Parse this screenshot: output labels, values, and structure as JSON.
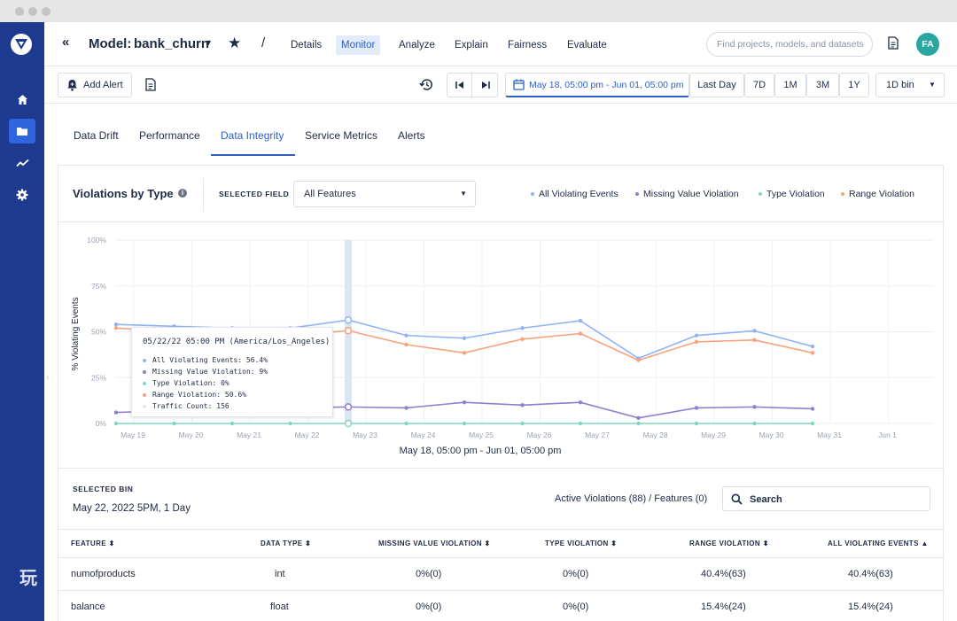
{
  "header": {
    "model_prefix": "Model:",
    "model_name": "bank_churn",
    "nav": [
      "Details",
      "Monitor",
      "Analyze",
      "Explain",
      "Fairness",
      "Evaluate"
    ],
    "search_placeholder": "Find projects, models, and datasets",
    "avatar_initials": "FA"
  },
  "toolbar": {
    "add_alert": "Add Alert",
    "date_range": "May 18, 05:00 pm - Jun 01, 05:00 pm",
    "last_day": "Last Day",
    "ranges": [
      "7D",
      "1M",
      "3M",
      "1Y"
    ],
    "bin": "1D bin"
  },
  "tabs": [
    "Data Drift",
    "Performance",
    "Data Integrity",
    "Service Metrics",
    "Alerts"
  ],
  "chart_panel": {
    "title": "Violations by Type",
    "selected_field_label": "SELECTED FIELD",
    "selected_field_value": "All Features",
    "legend": [
      {
        "name": "All Violating Events",
        "color": "#8fb4f5"
      },
      {
        "name": "Missing Value Violation",
        "color": "#8e7fd0"
      },
      {
        "name": "Type Violation",
        "color": "#7fd6c2"
      },
      {
        "name": "Range Violation",
        "color": "#f7a27a"
      }
    ],
    "tooltip": {
      "title": "05/22/22 05:00 PM (America/Los_Angeles)",
      "rows": [
        {
          "text": "All Violating Events: 56.4%",
          "color": "#8fb4f5"
        },
        {
          "text": "Missing Value Violation: 9%",
          "color": "#8e7fd0"
        },
        {
          "text": "Type Violation: 0%",
          "color": "#7fd6c2"
        },
        {
          "text": "Range Violation: 50.6%",
          "color": "#f7a27a"
        },
        {
          "text": "Traffic Count: 156",
          "color": "#e8e8e8"
        }
      ]
    }
  },
  "chart_data": {
    "type": "line",
    "title": "",
    "xlabel": "May 18, 05:00 pm - Jun 01, 05:00 pm",
    "ylabel": "% Violating Events",
    "yticks": [
      "100%",
      "75%",
      "50%",
      "25%",
      "0%"
    ],
    "ylim": [
      0,
      100
    ],
    "x_ticks": [
      "May 19",
      "May 20",
      "May 21",
      "May 22",
      "May 23",
      "May 24",
      "May 25",
      "May 26",
      "May 27",
      "May 28",
      "May 29",
      "May 30",
      "May 31",
      "Jun 1"
    ],
    "x": [
      "May 18",
      "May 19",
      "May 20",
      "May 21",
      "May 22",
      "May 23",
      "May 24",
      "May 25",
      "May 26",
      "May 27",
      "May 28",
      "May 29",
      "May 30"
    ],
    "series": [
      {
        "name": "All Violating Events",
        "color": "#8fb4f5",
        "values": [
          54,
          53,
          52,
          52,
          56.4,
          48,
          46.5,
          52,
          56,
          35.5,
          48,
          50.5,
          42
        ]
      },
      {
        "name": "Missing Value Violation",
        "color": "#8e7fd0",
        "values": [
          6,
          7,
          8,
          8.5,
          9,
          8.5,
          11.5,
          10,
          11.5,
          3,
          8.5,
          9,
          8
        ]
      },
      {
        "name": "Type Violation",
        "color": "#7fd6c2",
        "values": [
          0,
          0,
          0,
          0,
          0,
          0,
          0,
          0,
          0,
          0,
          0,
          0,
          0
        ]
      },
      {
        "name": "Range Violation",
        "color": "#f7a27a",
        "values": [
          52,
          50,
          49,
          48,
          50.6,
          43,
          38.5,
          46,
          49,
          34.5,
          44.5,
          45.5,
          38.5
        ]
      }
    ],
    "highlight_x": "May 22"
  },
  "bin": {
    "label": "SELECTED BIN",
    "value": "May 22, 2022 5PM, 1 Day",
    "active_violations": "Active Violations (88) / Features (0)",
    "search": "Search"
  },
  "table": {
    "headers": [
      "FEATURE ⬍",
      "DATA TYPE ⬍",
      "MISSING VALUE VIOLATION ⬍",
      "TYPE VIOLATION ⬍",
      "RANGE VIOLATION ⬍",
      "ALL VIOLATING EVENTS ▲"
    ],
    "rows": [
      [
        "numofproducts",
        "int",
        "0%(0)",
        "0%(0)",
        "40.4%(63)",
        "40.4%(63)"
      ],
      [
        "balance",
        "float",
        "0%(0)",
        "0%(0)",
        "15.4%(24)",
        "15.4%(24)"
      ]
    ]
  }
}
